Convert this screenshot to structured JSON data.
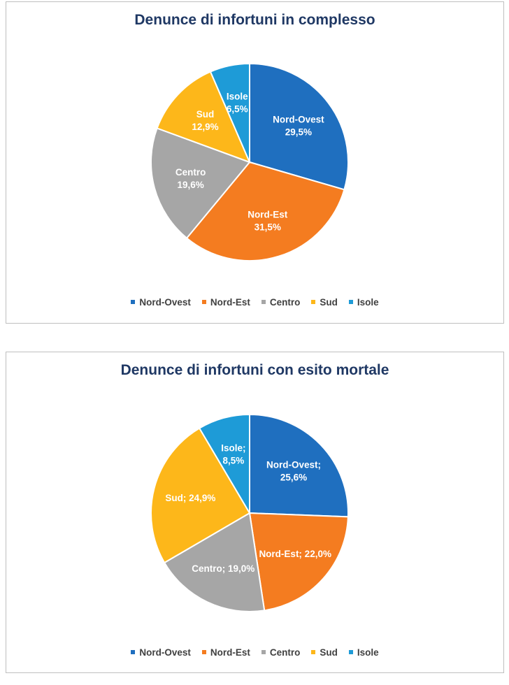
{
  "chart_data": [
    {
      "type": "pie",
      "title": "Denunce di infortuni in complesso",
      "categories": [
        "Nord-Ovest",
        "Nord-Est",
        "Centro",
        "Sud",
        "Isole"
      ],
      "values": [
        29.5,
        31.5,
        19.6,
        12.9,
        6.5
      ],
      "labels": [
        [
          "Nord-Ovest",
          "29,5%"
        ],
        [
          "Nord-Est",
          "31,5%"
        ],
        [
          "Centro",
          "19,6%"
        ],
        [
          "Sud",
          "12,9%"
        ],
        [
          "Isole",
          "6,5%"
        ]
      ],
      "colors": [
        "#1f6fbf",
        "#f47c20",
        "#a6a6a6",
        "#fdb71a",
        "#1e9bd7"
      ],
      "legend": {
        "position": "bottom",
        "entries": [
          "Nord-Ovest",
          "Nord-Est",
          "Centro",
          "Sud",
          "Isole"
        ]
      }
    },
    {
      "type": "pie",
      "title": "Denunce di infortuni con esito mortale",
      "categories": [
        "Nord-Ovest",
        "Nord-Est",
        "Centro",
        "Sud",
        "Isole"
      ],
      "values": [
        25.6,
        22.0,
        19.0,
        24.9,
        8.5
      ],
      "labels": [
        [
          "Nord-Ovest;",
          "25,6%"
        ],
        [
          "Nord-Est; 22,0%"
        ],
        [
          "Centro; 19,0%"
        ],
        [
          "Sud; 24,9%"
        ],
        [
          "Isole;",
          "8,5%"
        ]
      ],
      "colors": [
        "#1f6fbf",
        "#f47c20",
        "#a6a6a6",
        "#fdb71a",
        "#1e9bd7"
      ],
      "legend": {
        "position": "bottom",
        "entries": [
          "Nord-Ovest",
          "Nord-Est",
          "Centro",
          "Sud",
          "Isole"
        ]
      }
    }
  ]
}
